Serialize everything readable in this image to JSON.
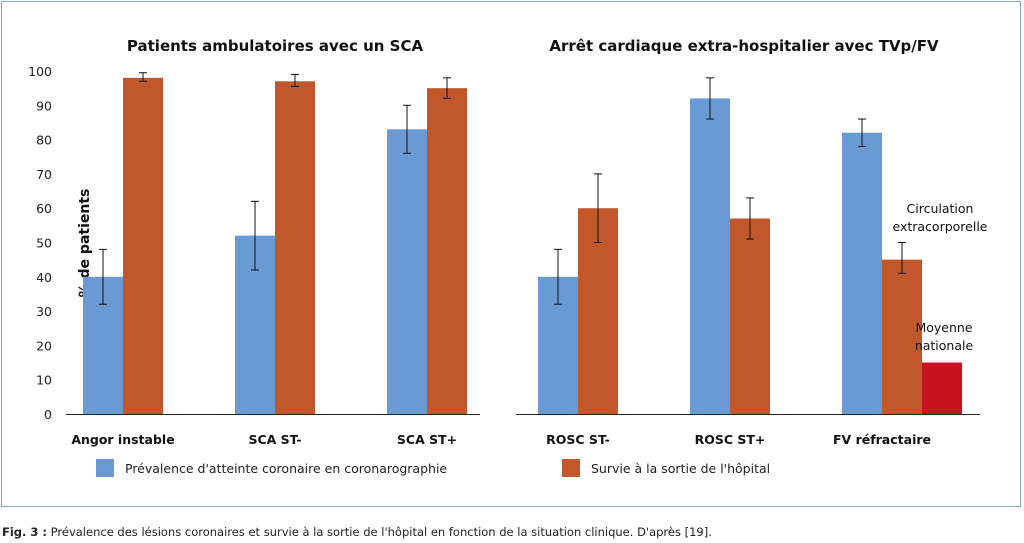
{
  "figure": {
    "caption_label": "Fig. 3 :",
    "caption_text": " Prévalence des lésions coronaires et survie à la sortie de l'hôpital en fonction de la situation clinique. D'après [19].",
    "colors": {
      "prevalence": "#6a9ad3",
      "survival": "#c0582b",
      "national": "#c8121e",
      "axis": "#222222"
    }
  },
  "chart_data": [
    {
      "type": "bar",
      "title": "Patients ambulatoires avec un SCA",
      "ylabel": "% de patients",
      "ylim": [
        0,
        100
      ],
      "yticks": [
        0,
        10,
        20,
        30,
        40,
        50,
        60,
        70,
        80,
        90,
        100
      ],
      "categories": [
        "Angor instable",
        "SCA ST-",
        "SCA ST+"
      ],
      "series": [
        {
          "name": "Prévalence d'atteinte coronaire en coronarographie",
          "values": [
            40,
            52,
            83
          ],
          "err_low": [
            32,
            42,
            76
          ],
          "err_high": [
            48,
            62,
            90
          ]
        },
        {
          "name": "Survie à la sortie de l'hôpital",
          "values": [
            98,
            97,
            95
          ],
          "err_low": [
            97,
            95.5,
            92
          ],
          "err_high": [
            99.5,
            99,
            98
          ]
        }
      ]
    },
    {
      "type": "bar",
      "title": "Arrêt cardiaque extra-hospitalier avec TVp/FV",
      "ylim": [
        0,
        100
      ],
      "categories": [
        "ROSC ST-",
        "ROSC ST+",
        "FV réfractaire"
      ],
      "series": [
        {
          "name": "Prévalence d'atteinte coronaire en coronarographie",
          "values": [
            40,
            92,
            82
          ],
          "err_low": [
            32,
            86,
            78
          ],
          "err_high": [
            48,
            98,
            86
          ]
        },
        {
          "name": "Survie à la sortie de l'hôpital",
          "values": [
            60,
            57,
            45
          ],
          "err_low": [
            50,
            51,
            41
          ],
          "err_high": [
            70,
            63,
            50
          ]
        }
      ],
      "extra_bar": {
        "category": "FV réfractaire",
        "value": 15,
        "label_lines": [
          "Moyenne",
          "nationale"
        ]
      },
      "annotation": {
        "category": "FV réfractaire",
        "label_lines": [
          "Circulation",
          "extracorporelle"
        ]
      }
    }
  ]
}
